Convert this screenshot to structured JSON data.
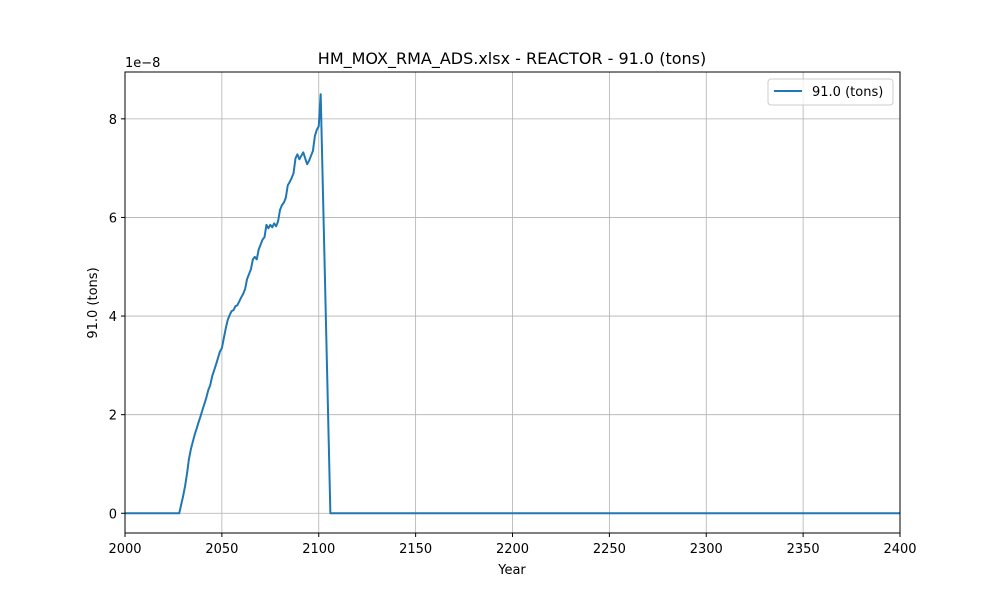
{
  "chart_data": {
    "type": "line",
    "title": "HM_MOX_RMA_ADS.xlsx - REACTOR - 91.0 (tons)",
    "xlabel": "Year",
    "ylabel": "91.0 (tons)",
    "y_offset_label": "1e−8",
    "xlim": [
      2000,
      2400
    ],
    "ylim": [
      -0.4,
      8.95
    ],
    "x_ticks": [
      2000,
      2050,
      2100,
      2150,
      2200,
      2250,
      2300,
      2350,
      2400
    ],
    "y_ticks": [
      0,
      2,
      4,
      6,
      8
    ],
    "grid": true,
    "legend_position": "top-right",
    "line_color": "#1f77b4",
    "series": [
      {
        "name": "91.0 (tons)",
        "x": [
          2000,
          2028,
          2030,
          2031,
          2032,
          2033,
          2034,
          2035,
          2036,
          2037,
          2038,
          2039,
          2040,
          2041,
          2042,
          2043,
          2044,
          2045,
          2046,
          2047,
          2048,
          2049,
          2050,
          2051,
          2052,
          2053,
          2054,
          2055,
          2056,
          2057,
          2058,
          2059,
          2060,
          2061,
          2062,
          2063,
          2064,
          2065,
          2066,
          2067,
          2068,
          2069,
          2070,
          2071,
          2072,
          2073,
          2074,
          2075,
          2076,
          2077,
          2078,
          2079,
          2080,
          2081,
          2082,
          2083,
          2084,
          2085,
          2086,
          2087,
          2088,
          2089,
          2090,
          2091,
          2092,
          2093,
          2094,
          2095,
          2096,
          2097,
          2098,
          2099,
          2100,
          2101,
          2106,
          2400
        ],
        "y": [
          0,
          0,
          0.35,
          0.55,
          0.8,
          1.1,
          1.3,
          1.45,
          1.6,
          1.72,
          1.85,
          1.97,
          2.1,
          2.22,
          2.35,
          2.5,
          2.6,
          2.78,
          2.9,
          3.02,
          3.15,
          3.28,
          3.35,
          3.55,
          3.75,
          3.92,
          4.02,
          4.1,
          4.12,
          4.2,
          4.22,
          4.3,
          4.38,
          4.45,
          4.55,
          4.75,
          4.85,
          4.95,
          5.15,
          5.2,
          5.15,
          5.35,
          5.45,
          5.55,
          5.6,
          5.85,
          5.78,
          5.85,
          5.8,
          5.88,
          5.82,
          5.92,
          6.15,
          6.25,
          6.3,
          6.4,
          6.65,
          6.72,
          6.8,
          6.9,
          7.2,
          7.28,
          7.18,
          7.25,
          7.32,
          7.2,
          7.08,
          7.15,
          7.25,
          7.35,
          7.65,
          7.78,
          7.85,
          8.5,
          0,
          0
        ]
      }
    ]
  }
}
